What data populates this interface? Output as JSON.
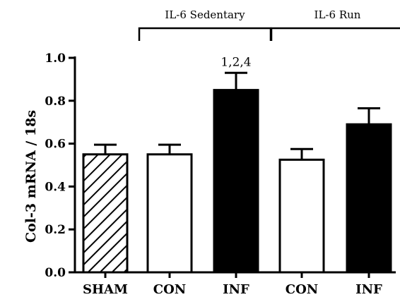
{
  "chart_data": {
    "type": "bar",
    "ylabel": "Col-3 mRNA / 18s",
    "xlabel": "",
    "ylim": [
      0.0,
      1.0
    ],
    "yticks": [
      "0.0",
      "0.2",
      "0.4",
      "0.6",
      "0.8",
      "1.0"
    ],
    "grid": false,
    "categories": [
      "SHAM",
      "CON",
      "INF",
      "CON",
      "INF"
    ],
    "values": [
      0.55,
      0.55,
      0.85,
      0.525,
      0.69
    ],
    "errors": [
      0.045,
      0.045,
      0.08,
      0.05,
      0.075
    ],
    "fills": [
      "hatch",
      "white",
      "black",
      "white",
      "black"
    ],
    "groups": [
      {
        "label": "IL-6 Sedentary",
        "from": 1,
        "to": 2
      },
      {
        "label": "IL-6 Run",
        "from": 3,
        "to": 4
      }
    ],
    "annotations": [
      {
        "bar": 2,
        "text": "1,2,4"
      }
    ]
  },
  "colors": {
    "axis": "#000000",
    "black_fill": "#000000",
    "white_fill": "#ffffff"
  }
}
